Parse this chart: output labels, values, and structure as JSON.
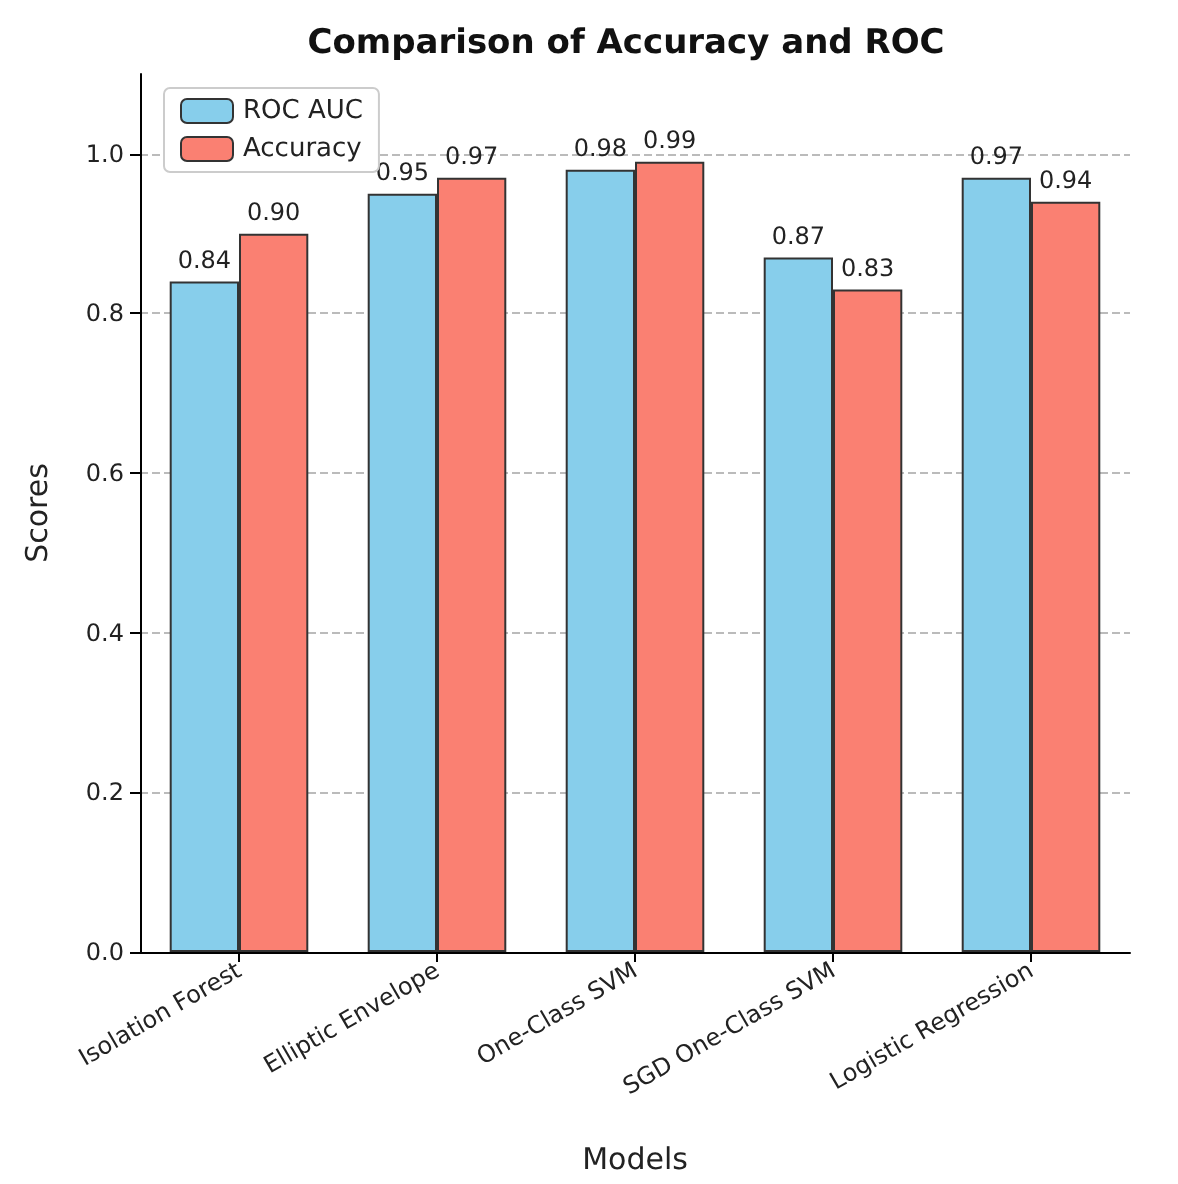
{
  "chart_data": {
    "type": "bar",
    "title": "Comparison of Accuracy and ROC",
    "xlabel": "Models",
    "ylabel": "Scores",
    "categories": [
      "Isolation Forest",
      "Elliptic Envelope",
      "One-Class SVM",
      "SGD One-Class SVM",
      "Logistic Regression"
    ],
    "series": [
      {
        "name": "ROC AUC",
        "color": "#87ceeb",
        "values": [
          0.84,
          0.95,
          0.98,
          0.87,
          0.97
        ],
        "value_labels": [
          "0.84",
          "0.95",
          "0.98",
          "0.87",
          "0.97"
        ]
      },
      {
        "name": "Accuracy",
        "color": "#fa8072",
        "values": [
          0.9,
          0.97,
          0.99,
          0.83,
          0.94
        ],
        "value_labels": [
          "0.90",
          "0.97",
          "0.99",
          "0.83",
          "0.94"
        ]
      }
    ],
    "ylim": [
      0,
      1.1
    ],
    "yticks": [
      {
        "value": 0,
        "label": "0.0"
      },
      {
        "value": 0.2,
        "label": "0.2"
      },
      {
        "value": 0.4,
        "label": "0.4"
      },
      {
        "value": 0.6,
        "label": "0.6"
      },
      {
        "value": 0.8,
        "label": "0.8"
      },
      {
        "value": 1,
        "label": "1.0"
      }
    ],
    "grid": "y",
    "legend": "top left"
  }
}
